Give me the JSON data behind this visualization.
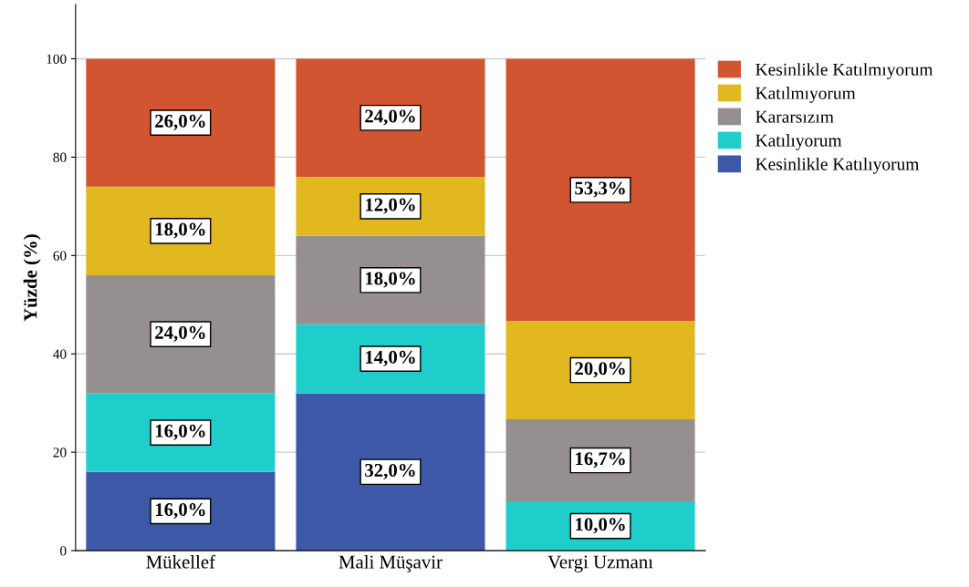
{
  "chart_data": {
    "type": "bar",
    "stacked": true,
    "ylabel": "Yüzde (%)",
    "categories": [
      "Mükellef",
      "Mali Müşavir",
      "Vergi Uzmanı"
    ],
    "series": [
      {
        "name": "Kesinlikle Katılıyorum",
        "color": "#3e58a8",
        "values": [
          16.0,
          32.0,
          null
        ],
        "value_labels": [
          "16,0%",
          "32,0%",
          null
        ]
      },
      {
        "name": "Katılıyorum",
        "color": "#1fcecb",
        "values": [
          16.0,
          14.0,
          10.0
        ],
        "value_labels": [
          "16,0%",
          "14,0%",
          "10,0%"
        ]
      },
      {
        "name": "Kararsızım",
        "color": "#958f8f",
        "values": [
          24.0,
          18.0,
          16.7
        ],
        "value_labels": [
          "24,0%",
          "18,0%",
          "16,7%"
        ]
      },
      {
        "name": "Katılmıyorum",
        "color": "#e1b81f",
        "values": [
          18.0,
          12.0,
          20.0
        ],
        "value_labels": [
          "18,0%",
          "12,0%",
          "20,0%"
        ]
      },
      {
        "name": "Kesinlikle Katılmıyorum",
        "color": "#d25532",
        "values": [
          26.0,
          24.0,
          53.3
        ],
        "value_labels": [
          "26,0%",
          "24,0%",
          "53,3%"
        ]
      }
    ],
    "ylim": [
      0,
      111
    ],
    "yticks": [
      0,
      20,
      40,
      60,
      80,
      100
    ],
    "grid": "y",
    "legend": "top right"
  }
}
